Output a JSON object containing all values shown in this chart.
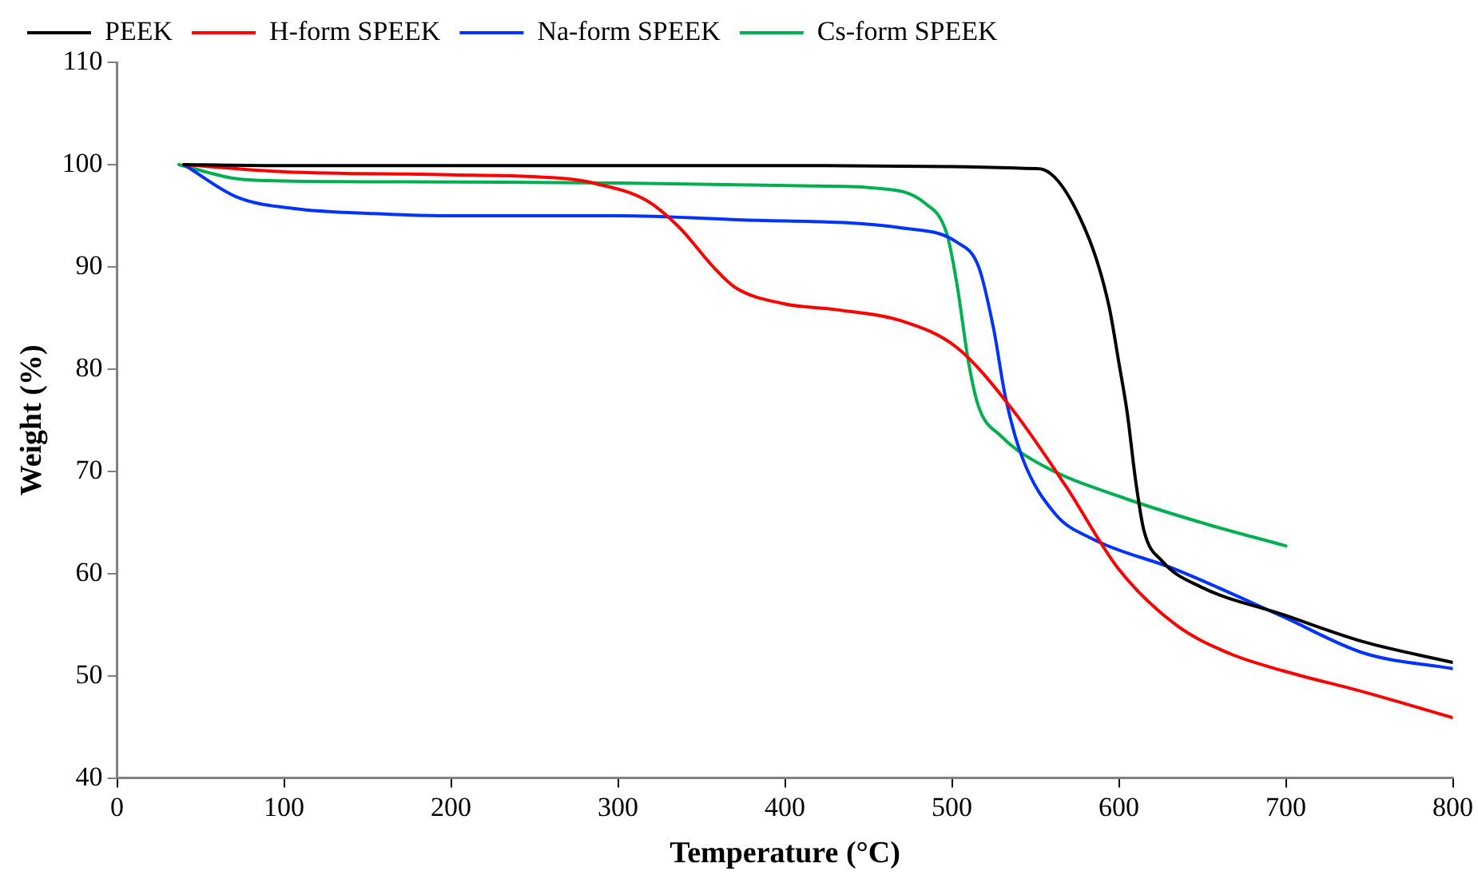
{
  "chart_data": {
    "type": "line",
    "xlabel": "Temperature (°C)",
    "ylabel": "Weight (%)",
    "xlim": [
      0,
      800
    ],
    "xticks": [
      0,
      100,
      200,
      300,
      400,
      500,
      600,
      700,
      800
    ],
    "ylim": [
      40,
      110
    ],
    "yticks": [
      40,
      50,
      60,
      70,
      80,
      90,
      100,
      110
    ],
    "grid": false,
    "legend": "top",
    "marker": "none",
    "line_style": "solid",
    "series": [
      {
        "name": "PEEK",
        "color": "#000000",
        "x": [
          40,
          100,
          200,
          300,
          400,
          500,
          550,
          555,
          581,
          594,
          600,
          605,
          610,
          615,
          626,
          649,
          698,
          747,
          800
        ],
        "values": [
          100,
          99.9,
          99.9,
          99.9,
          99.9,
          99.8,
          99.6,
          99.5,
          93.2,
          86.2,
          80.6,
          75.7,
          69.1,
          64.2,
          61.2,
          58.7,
          56.0,
          53.3,
          51.3
        ]
      },
      {
        "name": "H-form SPEEK",
        "color": "#ff0000",
        "x": [
          40,
          100,
          200,
          270,
          285,
          317,
          337,
          357,
          370,
          399,
          431,
          470,
          503,
          535,
          568,
          600,
          634,
          666,
          698,
          747,
          800
        ],
        "values": [
          100,
          99.3,
          99,
          98.6,
          98.2,
          96.5,
          93.8,
          90,
          88,
          86.4,
          85.8,
          84.7,
          82.1,
          76.3,
          68.6,
          60.4,
          55.0,
          52.2,
          50.5,
          48.4,
          45.9
        ]
      },
      {
        "name": "Na-form SPEEK",
        "color": "#0033ff",
        "x": [
          40,
          72,
          106,
          154,
          200,
          300,
          372,
          470,
          503,
          516,
          525,
          532,
          542,
          562,
          584,
          634,
          698,
          747,
          800
        ],
        "values": [
          100,
          96.8,
          95.7,
          95.2,
          95,
          95,
          94.6,
          93.8,
          92.4,
          90,
          83.9,
          77.3,
          71.4,
          65.8,
          63.4,
          60.4,
          55.8,
          52.2,
          50.7
        ]
      },
      {
        "name": "Cs-form SPEEK",
        "color": "#00b050",
        "x": [
          37,
          72,
          100,
          200,
          300,
          420,
          454,
          484,
          497,
          503,
          510,
          516,
          529,
          555,
          601,
          649,
          700
        ],
        "values": [
          100,
          98.6,
          98.4,
          98.3,
          98.2,
          97.9,
          97.7,
          96.2,
          93.2,
          88.3,
          80.6,
          76.3,
          73.5,
          70.5,
          67.5,
          65.0,
          62.7
        ]
      }
    ]
  }
}
